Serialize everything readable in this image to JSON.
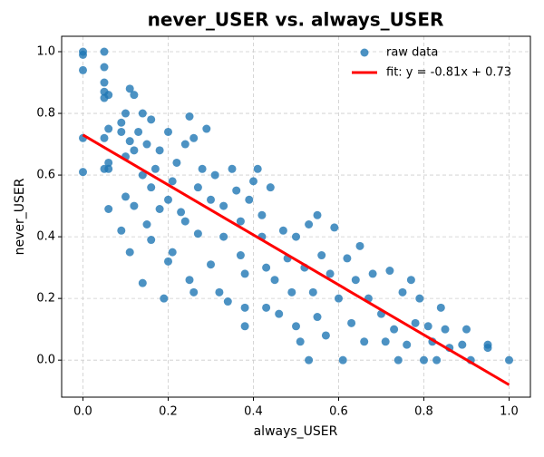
{
  "chart_data": {
    "type": "scatter",
    "title": "never_USER vs. always_USER",
    "x_label": "always_USER",
    "y_label": "never_USER",
    "xlim": [
      -0.05,
      1.05
    ],
    "ylim": [
      -0.12,
      1.05
    ],
    "xticks": [
      {
        "value": 0,
        "label": "0.0"
      },
      0.2,
      0.4,
      0.6,
      0.8,
      {
        "value": 1,
        "label": "1.0"
      }
    ],
    "yticks": [
      {
        "value": 0,
        "label": "0.0"
      },
      0.2,
      0.4,
      0.6,
      0.8,
      {
        "value": 1,
        "label": "1.0"
      }
    ],
    "grid": true,
    "legend": "upper right",
    "series": [
      {
        "name": "raw data",
        "color": "#1f77b4",
        "x": [
          0,
          0,
          0,
          0,
          0,
          0.05,
          0.05,
          0.05,
          0.05,
          0.05,
          0.06,
          0.05,
          0.05,
          0.06,
          0.06,
          0.06,
          0.06,
          0.09,
          0.09,
          0.1,
          0.11,
          0.12,
          0.11,
          0.12,
          0.1,
          0.1,
          0.09,
          0.11,
          0.12,
          0.14,
          0.13,
          0.14,
          0.15,
          0.16,
          0.16,
          0.15,
          0.16,
          0.14,
          0.17,
          0.18,
          0.18,
          0.19,
          0.2,
          0.2,
          0.2,
          0.21,
          0.21,
          0.22,
          0.23,
          0.24,
          0.24,
          0.25,
          0.25,
          0.26,
          0.26,
          0.27,
          0.27,
          0.28,
          0.29,
          0.3,
          0.3,
          0.31,
          0.32,
          0.33,
          0.33,
          0.34,
          0.35,
          0.36,
          0.37,
          0.37,
          0.38,
          0.38,
          0.38,
          0.39,
          0.4,
          0.41,
          0.42,
          0.42,
          0.43,
          0.43,
          0.44,
          0.45,
          0.46,
          0.47,
          0.48,
          0.49,
          0.5,
          0.5,
          0.51,
          0.52,
          0.53,
          0.53,
          0.54,
          0.55,
          0.55,
          0.56,
          0.57,
          0.58,
          0.59,
          0.6,
          0.61,
          0.62,
          0.63,
          0.64,
          0.65,
          0.66,
          0.67,
          0.68,
          0.7,
          0.71,
          0.72,
          0.73,
          0.74,
          0.75,
          0.76,
          0.77,
          0.78,
          0.79,
          0.8,
          0.81,
          0.82,
          0.83,
          0.84,
          0.85,
          0.86,
          0.89,
          0.9,
          0.91,
          0.95,
          0.95,
          1.0
        ],
        "values": [
          1,
          0.99,
          0.94,
          0.72,
          0.61,
          1,
          0.95,
          0.9,
          0.87,
          0.85,
          0.86,
          0.72,
          0.62,
          0.64,
          0.62,
          0.49,
          0.75,
          0.77,
          0.74,
          0.8,
          0.88,
          0.86,
          0.71,
          0.68,
          0.66,
          0.53,
          0.42,
          0.35,
          0.5,
          0.8,
          0.74,
          0.6,
          0.7,
          0.78,
          0.56,
          0.44,
          0.39,
          0.25,
          0.62,
          0.68,
          0.49,
          0.2,
          0.32,
          0.52,
          0.74,
          0.58,
          0.35,
          0.64,
          0.48,
          0.7,
          0.45,
          0.79,
          0.26,
          0.72,
          0.22,
          0.56,
          0.41,
          0.62,
          0.75,
          0.52,
          0.31,
          0.6,
          0.22,
          0.5,
          0.4,
          0.19,
          0.62,
          0.55,
          0.45,
          0.34,
          0.28,
          0.17,
          0.11,
          0.52,
          0.58,
          0.62,
          0.47,
          0.4,
          0.3,
          0.17,
          0.56,
          0.26,
          0.15,
          0.42,
          0.33,
          0.22,
          0.11,
          0.4,
          0.06,
          0.3,
          0.44,
          0,
          0.22,
          0.47,
          0.14,
          0.34,
          0.08,
          0.28,
          0.43,
          0.2,
          0,
          0.33,
          0.12,
          0.26,
          0.37,
          0.06,
          0.2,
          0.28,
          0.15,
          0.06,
          0.29,
          0.1,
          0,
          0.22,
          0.05,
          0.26,
          0.12,
          0.2,
          0,
          0.11,
          0.06,
          0,
          0.17,
          0.1,
          0.04,
          0.05,
          0.1,
          0,
          0.05,
          0.04,
          0
        ]
      },
      {
        "name": "fit: y = -0.81x + 0.73",
        "color": "#ff0000",
        "type": "line",
        "x": [
          0,
          1
        ],
        "values": [
          0.73,
          -0.08
        ]
      }
    ]
  }
}
